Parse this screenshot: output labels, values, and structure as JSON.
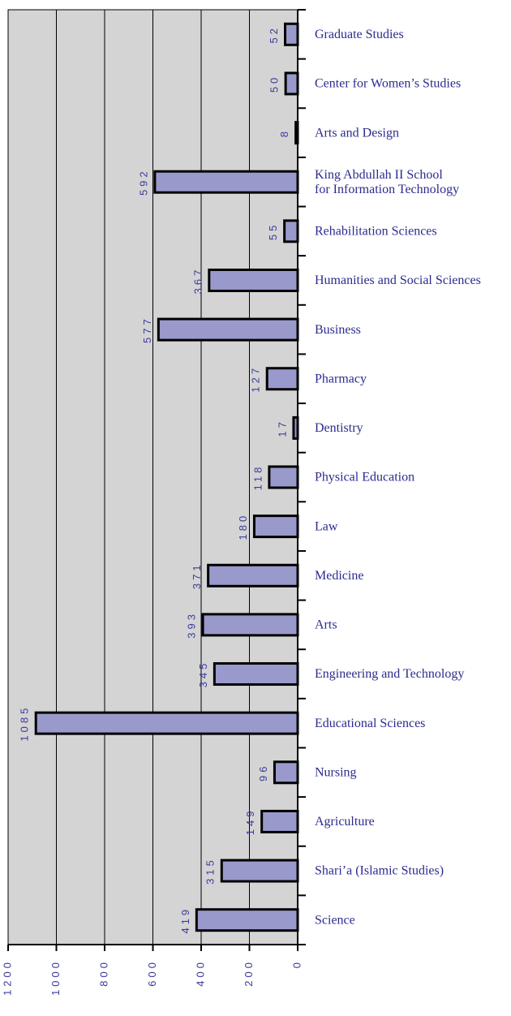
{
  "chart_data": {
    "type": "bar",
    "orientation": "horizontal",
    "categories": [
      "Graduate Studies",
      "Center for Women’s Studies",
      "Arts and Design",
      "King Abdullah II School\nfor Information Technology",
      "Rehabilitation Sciences",
      "Humanities and Social Sciences",
      "Business",
      "Pharmacy",
      "Dentistry",
      "Physical Education",
      "Law",
      "Medicine",
      "Arts",
      "Engineering and Technology",
      "Educational Sciences",
      "Nursing",
      "Agriculture",
      "Shari’a (Islamic Studies)",
      "Science"
    ],
    "values": [
      52,
      50,
      8,
      592,
      55,
      367,
      577,
      127,
      17,
      118,
      180,
      371,
      393,
      345,
      1085,
      96,
      149,
      315,
      419
    ],
    "color": "#9999cc",
    "background": "#d4d4d4",
    "xlim": [
      0,
      1200
    ],
    "xticks": [
      0,
      200,
      400,
      600,
      800,
      1000,
      1200
    ],
    "grid": true
  }
}
